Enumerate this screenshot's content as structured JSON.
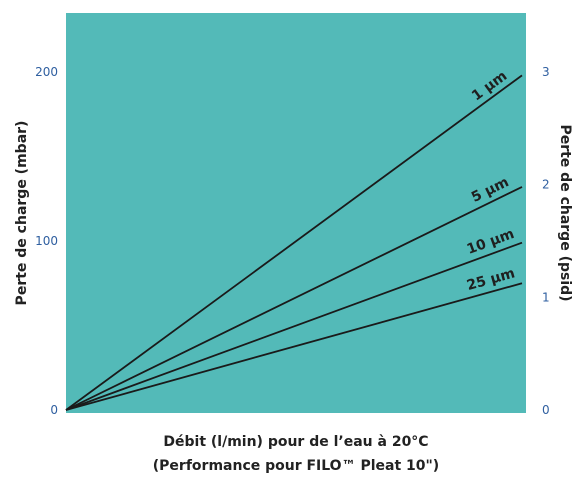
{
  "chart_data": {
    "type": "line",
    "xlabel": "Débit (l/min) pour de l’eau à 20°C",
    "xlabel_line2": "(Performance pour FILO™ Pleat 10\")",
    "ylabel_left": "Perte de charge (mbar)",
    "ylabel_right": "Perte de charge (psid)",
    "ylim_left": [
      0,
      200
    ],
    "ylim_right": [
      0,
      3
    ],
    "yticks_left": [
      "0",
      "100",
      "200"
    ],
    "yticks_right": [
      "0",
      "1",
      "2",
      "3"
    ],
    "grid": false,
    "plot_color": "#53bab8",
    "line_color": "#1a1a1a",
    "tick_color": "#2f5fa0",
    "series": [
      {
        "name": "1 µm",
        "start_mbar": 0,
        "end_mbar": 198
      },
      {
        "name": "5 µm",
        "start_mbar": 0,
        "end_mbar": 132
      },
      {
        "name": "10 µm",
        "start_mbar": 0,
        "end_mbar": 99
      },
      {
        "name": "25 µm",
        "start_mbar": 0,
        "end_mbar": 75
      }
    ]
  }
}
